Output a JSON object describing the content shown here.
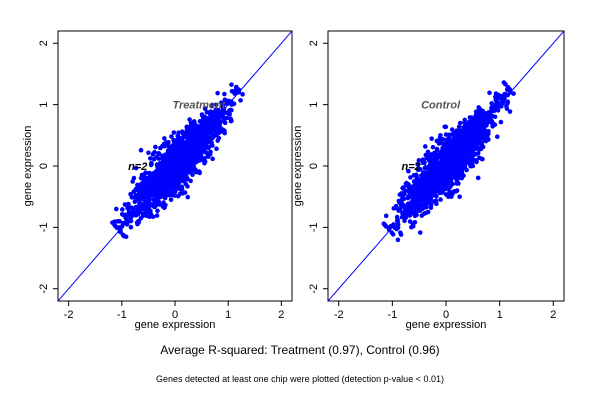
{
  "chart_data": [
    {
      "type": "scatter",
      "title": "",
      "xlabel": "gene expression",
      "ylabel": "gene expression",
      "xlim": [
        -2.2,
        2.2
      ],
      "ylim": [
        -2.2,
        2.2
      ],
      "xticks": [
        "-2",
        "-1",
        "0",
        "1",
        "2"
      ],
      "yticks": [
        "-2",
        "-1",
        "0",
        "1",
        "2"
      ],
      "grid": false,
      "reference_line": {
        "slope": 1,
        "intercept": 0,
        "color": "#0000ff"
      },
      "annotations": [
        "Treatment",
        "n=2"
      ],
      "series": [
        {
          "color": "#0000ff",
          "points": [
            [
              -1.05,
              -1.0
            ],
            [
              -0.9,
              -0.95
            ],
            [
              -0.75,
              -0.8
            ],
            [
              -0.6,
              -0.65
            ],
            [
              -0.5,
              -0.45
            ],
            [
              -0.4,
              -0.35
            ],
            [
              -0.3,
              -0.25
            ],
            [
              -0.2,
              -0.15
            ],
            [
              -0.1,
              -0.05
            ],
            [
              0.0,
              0.05
            ],
            [
              0.1,
              0.15
            ],
            [
              0.2,
              0.25
            ],
            [
              0.3,
              0.3
            ],
            [
              0.45,
              0.5
            ],
            [
              0.6,
              0.65
            ],
            [
              0.75,
              0.8
            ],
            [
              0.9,
              0.95
            ],
            [
              1.05,
              1.05
            ],
            [
              1.2,
              1.2
            ],
            [
              -0.3,
              0.2
            ],
            [
              0.1,
              -0.45
            ],
            [
              -0.55,
              -0.2
            ],
            [
              0.3,
              0.7
            ],
            [
              -0.2,
              0.45
            ],
            [
              0.4,
              -0.1
            ]
          ]
        }
      ]
    },
    {
      "type": "scatter",
      "title": "",
      "xlabel": "gene expression",
      "ylabel": "gene expression",
      "xlim": [
        -2.2,
        2.2
      ],
      "ylim": [
        -2.2,
        2.2
      ],
      "xticks": [
        "-2",
        "-1",
        "0",
        "1",
        "2"
      ],
      "yticks": [
        "-2",
        "-1",
        "0",
        "1",
        "2"
      ],
      "grid": false,
      "reference_line": {
        "slope": 1,
        "intercept": 0,
        "color": "#0000ff"
      },
      "annotations": [
        "Control",
        "n=2"
      ],
      "series": [
        {
          "color": "#0000ff",
          "points": [
            [
              -1.05,
              -1.0
            ],
            [
              -0.9,
              -0.9
            ],
            [
              -0.75,
              -0.75
            ],
            [
              -0.6,
              -0.6
            ],
            [
              -0.5,
              -0.5
            ],
            [
              -0.4,
              -0.35
            ],
            [
              -0.3,
              -0.3
            ],
            [
              -0.2,
              -0.15
            ],
            [
              -0.1,
              -0.1
            ],
            [
              0.0,
              0.0
            ],
            [
              0.1,
              0.1
            ],
            [
              0.2,
              0.25
            ],
            [
              0.3,
              0.3
            ],
            [
              0.45,
              0.45
            ],
            [
              0.6,
              0.6
            ],
            [
              0.75,
              0.75
            ],
            [
              0.9,
              0.9
            ],
            [
              1.05,
              1.05
            ],
            [
              1.2,
              1.2
            ],
            [
              -0.4,
              0.05
            ],
            [
              0.1,
              -0.5
            ],
            [
              -0.7,
              -0.3
            ],
            [
              0.35,
              0.75
            ],
            [
              -0.15,
              0.4
            ],
            [
              0.5,
              0.0
            ]
          ]
        }
      ]
    }
  ],
  "summary": "Average R-squared: Treatment (0.97), Control (0.96)",
  "footnote": "Genes detected at least one chip were plotted (detection p-value < 0.01)"
}
